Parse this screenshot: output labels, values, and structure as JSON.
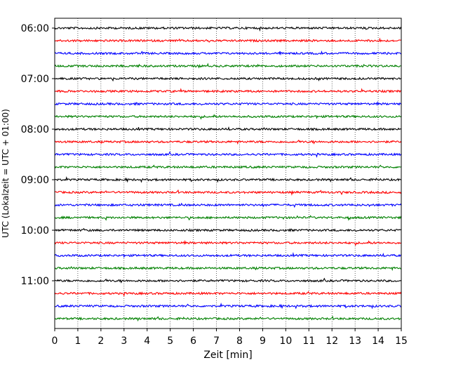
{
  "chart_data": {
    "type": "line",
    "title": "",
    "xlabel": "Zeit  [min]",
    "ylabel": "UTC (Lokalzeit = UTC + 01:00)",
    "xlim": [
      0,
      15
    ],
    "x_ticks": [
      "0",
      "1",
      "2",
      "3",
      "4",
      "5",
      "6",
      "7",
      "8",
      "9",
      "10",
      "11",
      "12",
      "13",
      "14",
      "15"
    ],
    "grid": "vertical dotted",
    "legend": "none",
    "row_interval_minutes": 15,
    "row_start": "06:00",
    "row_count": 24,
    "y_tick_labels": [
      "06:00",
      "07:00",
      "08:00",
      "09:00",
      "10:00",
      "11:00"
    ],
    "row_colors": [
      "#000000",
      "#ff0000",
      "#0000ff",
      "#008000"
    ]
  }
}
